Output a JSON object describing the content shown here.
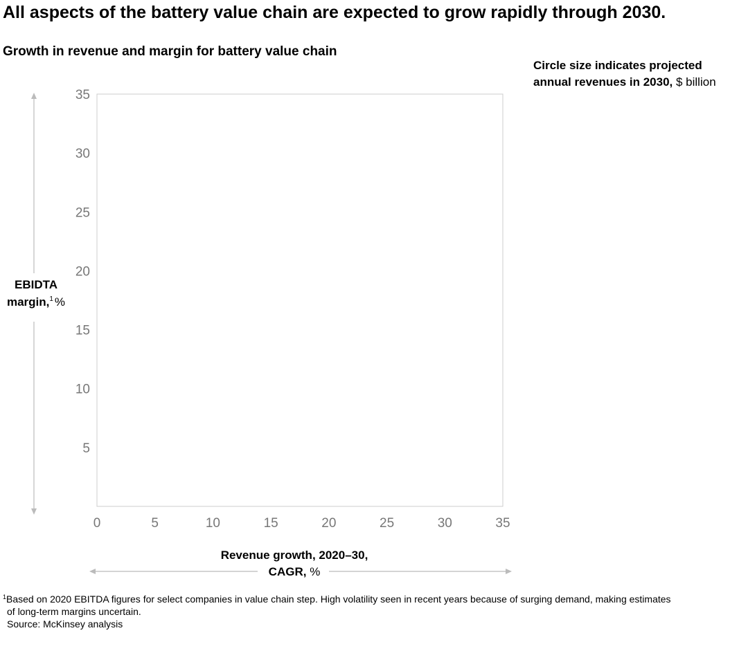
{
  "chart_data": {
    "type": "scatter",
    "title": "All aspects of the battery value chain are expected to grow rapidly through 2030.",
    "subtitle": "Growth in revenue and margin for battery value chain",
    "size_note": {
      "bold_lines": [
        "Circle size indicates projected",
        "annual revenues in 2030,"
      ],
      "unit": "$ billion"
    },
    "ylabel": {
      "bold_lines": [
        "EBIDTA",
        "margin,"
      ],
      "footnote_mark": "1",
      "unit": "%"
    },
    "xlabel": {
      "bold_lines": [
        "Revenue growth, 2020–30,",
        "CAGR,"
      ],
      "unit": "%"
    },
    "xlim": [
      0,
      35
    ],
    "ylim": [
      0,
      35
    ],
    "xticks": [
      0,
      5,
      10,
      15,
      20,
      25,
      30,
      35
    ],
    "yticks": [
      5,
      10,
      15,
      20,
      25,
      30,
      35
    ],
    "footnote": {
      "mark": "1",
      "lines": [
        "Based on 2020 EBITDA figures for select companies in value chain step. High volatility seen in recent years because of surging demand, making estimates",
        "of long-term margins uncertain."
      ]
    },
    "source": "Source: McKinsey analysis"
  }
}
